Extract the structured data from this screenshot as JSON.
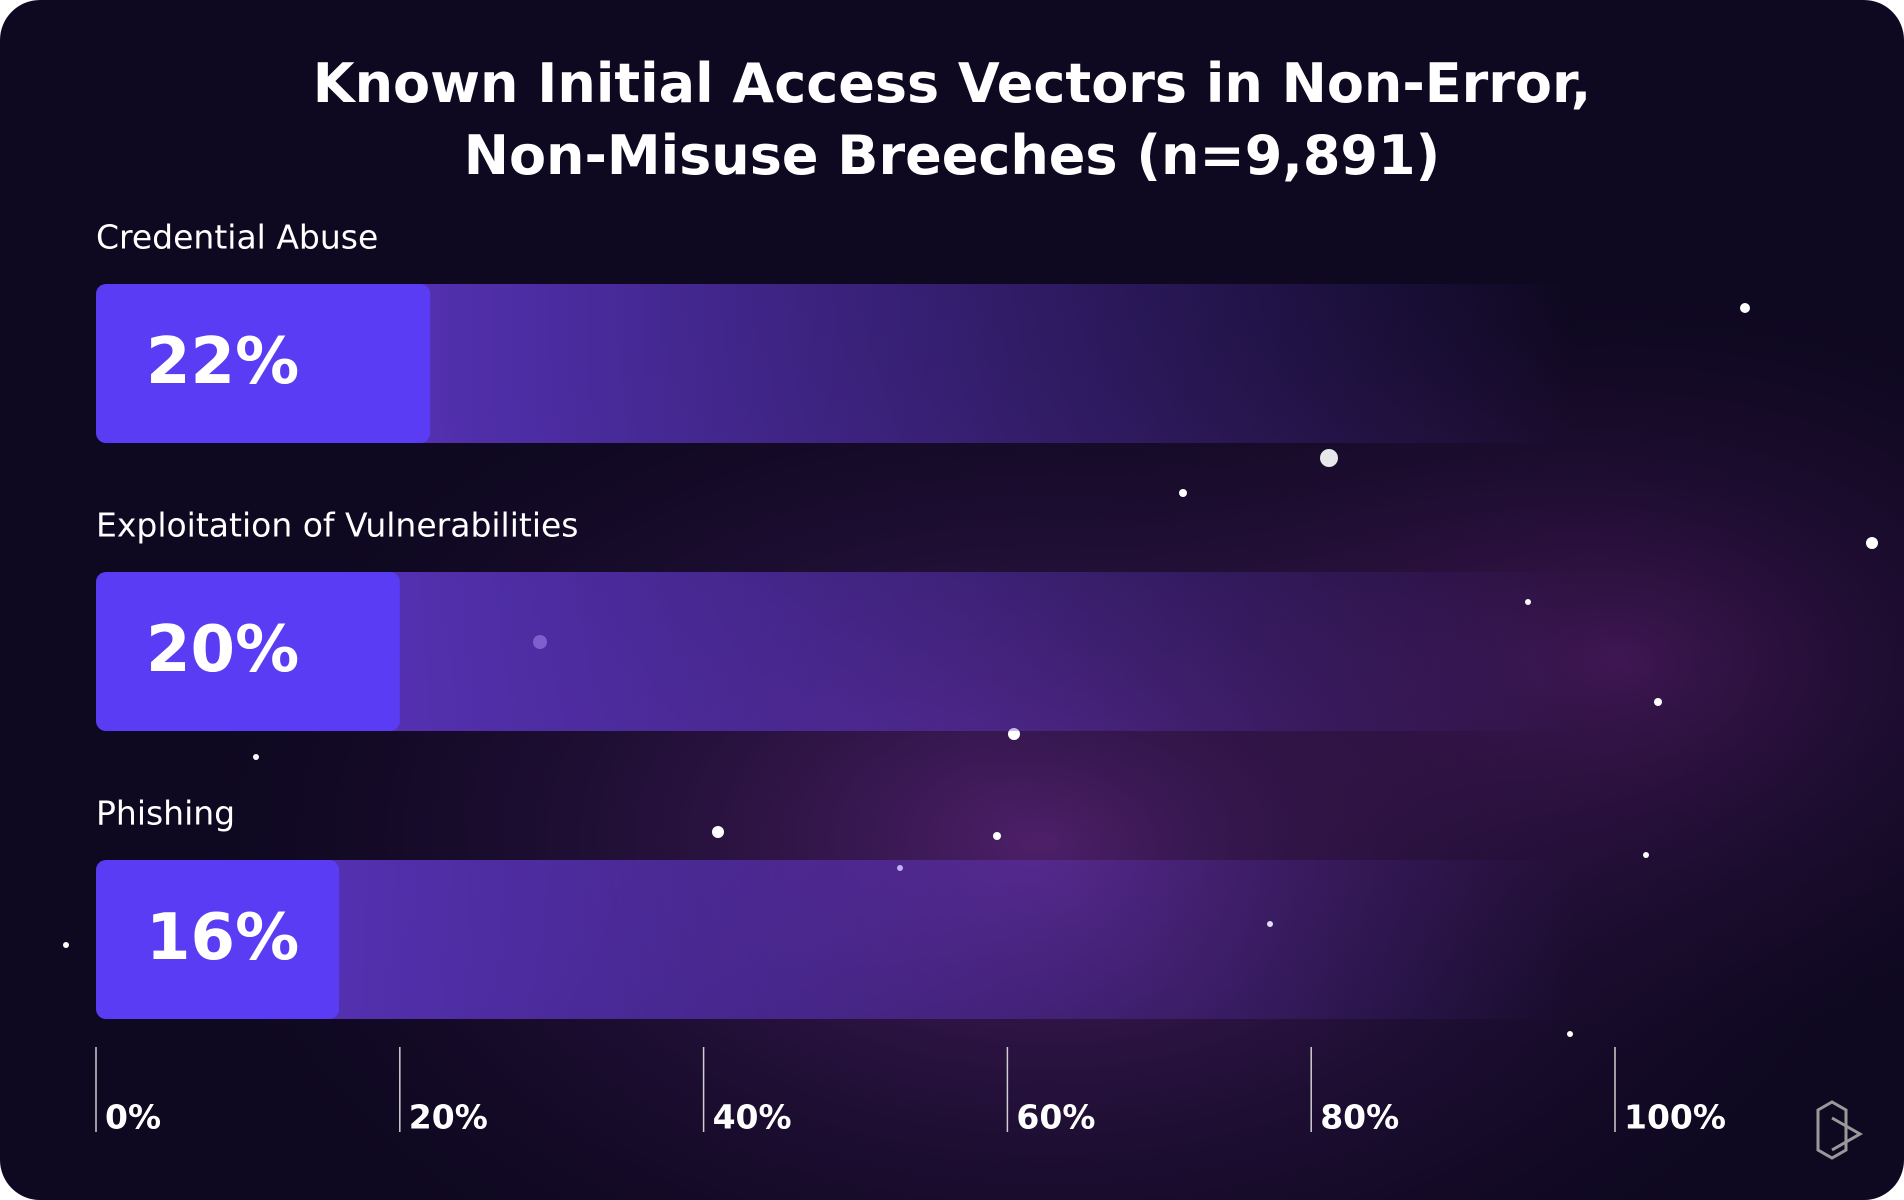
{
  "chart_data": {
    "type": "bar",
    "orientation": "horizontal",
    "title": "Known Initial Access Vectors in Non-Error,\nNon-Misuse Breeches (n=9,891)",
    "categories": [
      "Credential Abuse",
      "Exploitation of Vulnerabilities",
      "Phishing"
    ],
    "values": [
      22,
      20,
      16
    ],
    "value_labels": [
      "22%",
      "20%",
      "16%"
    ],
    "color": "#5b3cf5",
    "xlim": [
      0,
      100
    ],
    "xticks": [
      {
        "value": 0,
        "label": "0%"
      },
      {
        "value": 20,
        "label": "20%"
      },
      {
        "value": 40,
        "label": "40%"
      },
      {
        "value": 60,
        "label": "60%"
      },
      {
        "value": 80,
        "label": "80%"
      },
      {
        "value": 100,
        "label": "100%"
      }
    ]
  }
}
